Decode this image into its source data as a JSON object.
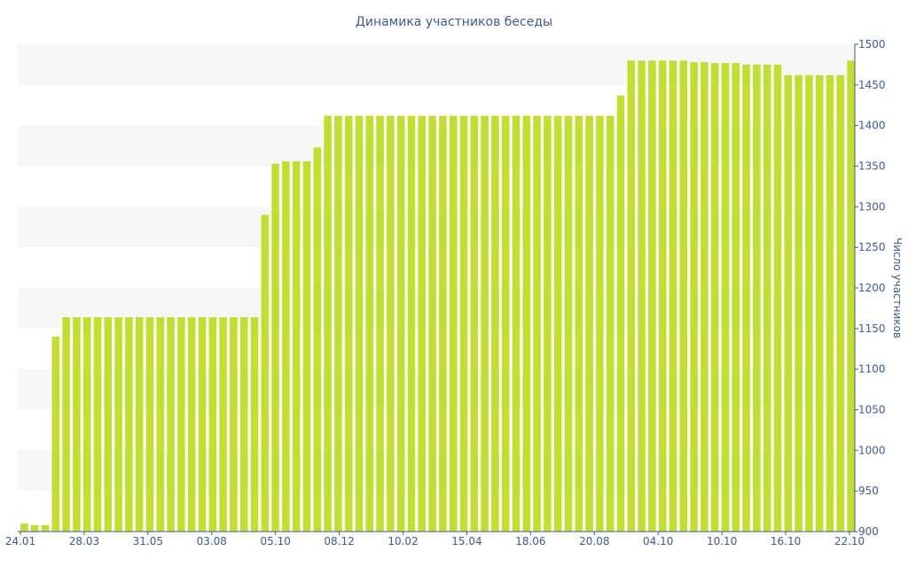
{
  "chart_data": {
    "type": "bar",
    "title": "Динамика участников беседы",
    "xlabel": "",
    "ylabel": "Число участников",
    "ylim": [
      900,
      1500
    ],
    "y_ticks": [
      900,
      950,
      1000,
      1050,
      1100,
      1150,
      1200,
      1250,
      1300,
      1350,
      1400,
      1450,
      1500
    ],
    "x_tick_labels": [
      "24.01",
      "28.03",
      "31.05",
      "03.08",
      "05.10",
      "08.12",
      "10.02",
      "15.04",
      "18.06",
      "20.08",
      "04.10",
      "10.10",
      "16.10",
      "22.10"
    ],
    "y_axis_position": "right",
    "grid": "alternating horizontal bands",
    "colors": {
      "bar": "#c0df2f",
      "text": "#3d5a99",
      "band": "#f7f7f7"
    },
    "values": [
      910,
      908,
      908,
      1140,
      1164,
      1164,
      1164,
      1164,
      1164,
      1164,
      1164,
      1164,
      1164,
      1164,
      1164,
      1164,
      1164,
      1164,
      1164,
      1164,
      1164,
      1164,
      1164,
      1290,
      1353,
      1356,
      1356,
      1356,
      1373,
      1412,
      1412,
      1412,
      1412,
      1412,
      1412,
      1412,
      1412,
      1412,
      1412,
      1412,
      1412,
      1412,
      1412,
      1412,
      1412,
      1412,
      1412,
      1412,
      1412,
      1412,
      1412,
      1412,
      1412,
      1412,
      1412,
      1412,
      1412,
      1437,
      1480,
      1480,
      1480,
      1480,
      1480,
      1480,
      1478,
      1478,
      1477,
      1477,
      1477,
      1475,
      1475,
      1475,
      1475,
      1462,
      1462,
      1462,
      1462,
      1462,
      1462,
      1480
    ]
  }
}
